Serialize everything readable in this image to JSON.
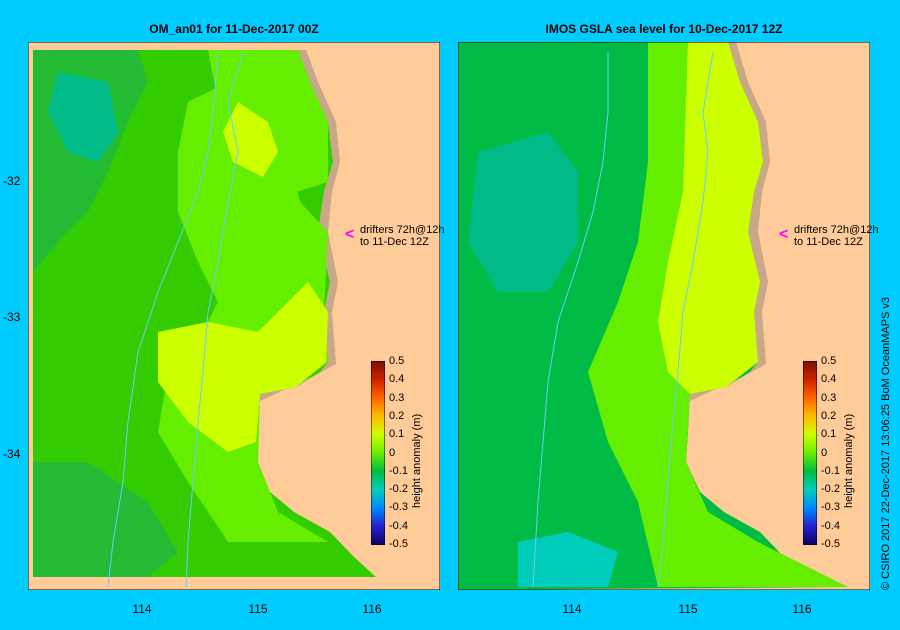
{
  "left_panel": {
    "title": "OM_an01  for 11-Dec-2017 00Z",
    "drifters_line1": "drifters 72h@12h",
    "drifters_line2": "to 11-Dec 12Z"
  },
  "right_panel": {
    "title": "IMOS GSLA sea level  for 10-Dec-2017 12Z",
    "drifters_line1": "drifters 72h@12h",
    "drifters_line2": "to 11-Dec 12Z"
  },
  "axes": {
    "lat_ticks": [
      "-32",
      "-33",
      "-34"
    ],
    "lon_ticks": [
      "114",
      "115",
      "116"
    ]
  },
  "colorbar": {
    "label": "height anomaly (m)",
    "ticks": [
      "0.5",
      "0.4",
      "0.3",
      "0.2",
      "0.1",
      "0",
      "-0.1",
      "-0.2",
      "-0.3",
      "-0.4",
      "-0.5"
    ]
  },
  "copyright": "© CSIRO 2017   22-Dec-2017 13:06:25 BoM OceanMAPS v3",
  "colors": {
    "background": "#00ccff",
    "land": "#ffcc99",
    "coast": "#c8a888"
  }
}
